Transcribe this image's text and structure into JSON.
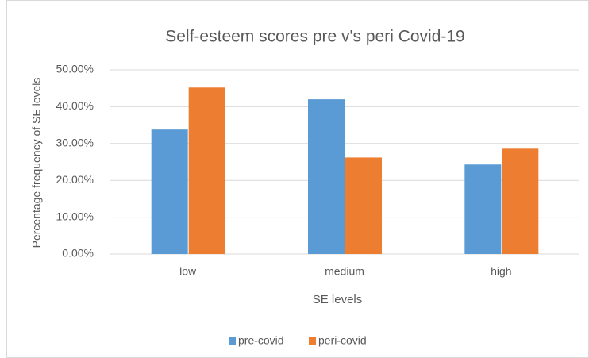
{
  "chart_data": {
    "type": "bar",
    "title": "Self-esteem scores pre v's peri Covid-19",
    "x_label": "SE levels",
    "y_label": "Percentage frequency of SE levels",
    "categories": [
      "low",
      "medium",
      "high"
    ],
    "series": [
      {
        "name": "pre-covid",
        "color": "#5b9bd5",
        "values": [
          33.8,
          42.0,
          24.3
        ]
      },
      {
        "name": "peri-covid",
        "color": "#ed7d31",
        "values": [
          45.2,
          26.2,
          28.6
        ]
      }
    ],
    "ylim": [
      0,
      50
    ],
    "yticks": [
      {
        "value": 0,
        "label": "0.00%"
      },
      {
        "value": 10,
        "label": "10.00%"
      },
      {
        "value": 20,
        "label": "20.00%"
      },
      {
        "value": 30,
        "label": "30.00%"
      },
      {
        "value": 40,
        "label": "40.00%"
      },
      {
        "value": 50,
        "label": "50.00%"
      }
    ],
    "grid": true,
    "legend": "bottom"
  }
}
